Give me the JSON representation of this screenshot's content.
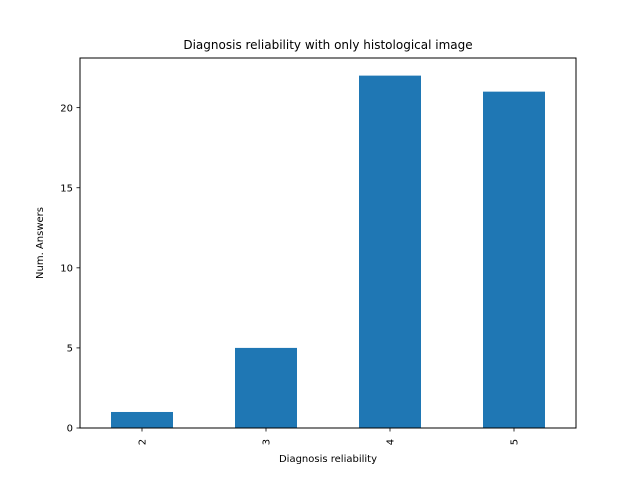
{
  "chart_data": {
    "type": "bar",
    "title": "Diagnosis reliability with only histological image",
    "xlabel": "Diagnosis reliability",
    "ylabel": "Num. Answers",
    "categories": [
      "2",
      "3",
      "4",
      "5"
    ],
    "values": [
      1,
      5,
      22,
      21
    ],
    "ylim": [
      0,
      23.1
    ],
    "yticks": [
      0,
      5,
      10,
      15,
      20
    ],
    "xtick_rotation": "vertical",
    "grid": false,
    "legend": "none",
    "bar_color": "#1f77b4"
  }
}
